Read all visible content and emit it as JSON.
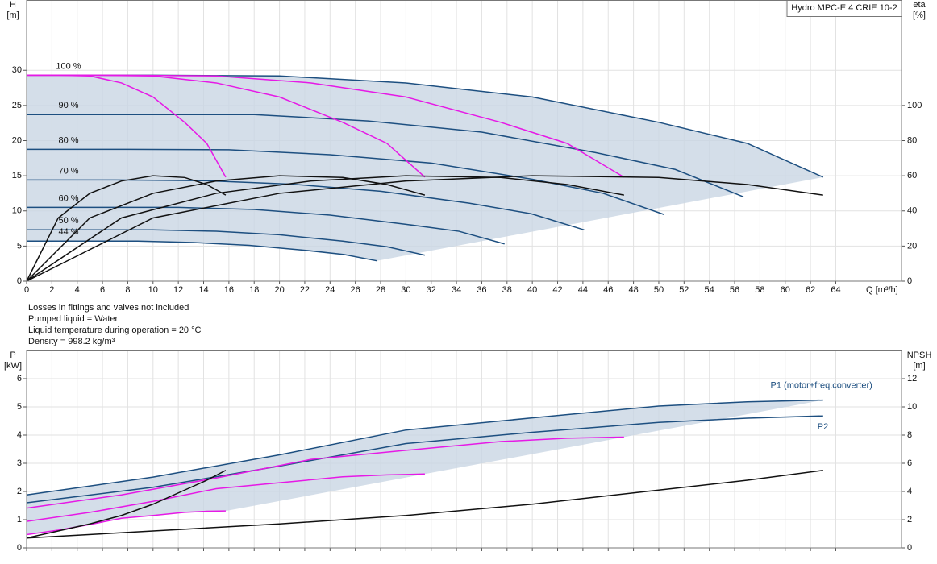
{
  "notes": [
    "Losses in fittings and valves not included",
    "Pumped liquid = Water",
    "Liquid temperature during operation = 20 °C",
    "Density = 998.2 kg/m³"
  ],
  "chart_data": [
    {
      "type": "line",
      "title": "Hydro MPC-E 4 CRIE 10-2",
      "xlabel": "Q [m³/h]",
      "ylabel": [
        "H",
        "[m]"
      ],
      "y2label": [
        "eta",
        "[%]"
      ],
      "xlim": [
        0,
        69.2
      ],
      "xticks": [
        0,
        2,
        4,
        6,
        8,
        10,
        12,
        14,
        16,
        18,
        20,
        22,
        24,
        26,
        28,
        30,
        32,
        34,
        36,
        38,
        40,
        42,
        44,
        46,
        48,
        50,
        52,
        54,
        56,
        58,
        60,
        62,
        64
      ],
      "ylim": [
        0,
        40
      ],
      "yticks": [
        0,
        5,
        10,
        15,
        20,
        25,
        30
      ],
      "y2lim": [
        0,
        160
      ],
      "y2ticks": [
        0,
        20,
        40,
        60,
        80,
        100
      ],
      "grid": true,
      "series": [
        {
          "name": "100 %",
          "color": "#1d4f80",
          "x": [
            0,
            10,
            20,
            30,
            40,
            50,
            57,
            63
          ],
          "values": [
            29.3,
            29.3,
            29.2,
            28.2,
            26.2,
            22.6,
            19.6,
            14.8
          ]
        },
        {
          "name": "90 %",
          "color": "#1d4f80",
          "x": [
            0,
            9,
            18,
            27,
            36,
            45,
            51.3,
            56.7
          ],
          "values": [
            23.7,
            23.7,
            23.7,
            22.8,
            21.2,
            18.3,
            15.9,
            12.0
          ]
        },
        {
          "name": "80 %",
          "color": "#1d4f80",
          "x": [
            0,
            8,
            16,
            24,
            32,
            40,
            45.6,
            50.4
          ],
          "values": [
            18.75,
            18.75,
            18.7,
            18.0,
            16.8,
            14.5,
            12.5,
            9.5
          ]
        },
        {
          "name": "70 %",
          "color": "#1d4f80",
          "x": [
            0,
            7,
            14,
            21,
            28,
            35,
            39.9,
            44.1
          ],
          "values": [
            14.4,
            14.4,
            14.3,
            13.8,
            12.8,
            11.1,
            9.6,
            7.3
          ]
        },
        {
          "name": "60 %",
          "color": "#1d4f80",
          "x": [
            0,
            6,
            12,
            18,
            24,
            30,
            34.2,
            37.8
          ],
          "values": [
            10.5,
            10.5,
            10.5,
            10.2,
            9.4,
            8.1,
            7.1,
            5.3
          ]
        },
        {
          "name": "50 %",
          "color": "#1d4f80",
          "x": [
            0,
            5,
            10,
            15,
            20,
            25,
            28.5,
            31.5
          ],
          "values": [
            7.3,
            7.3,
            7.3,
            7.1,
            6.6,
            5.7,
            4.9,
            3.7
          ]
        },
        {
          "name": "44 %",
          "color": "#1d4f80",
          "x": [
            0,
            4.4,
            8.8,
            13.2,
            17.6,
            22,
            25.1,
            27.7
          ],
          "values": [
            5.7,
            5.7,
            5.7,
            5.5,
            5.1,
            4.4,
            3.8,
            2.9
          ]
        },
        {
          "color": "#e619e6",
          "x": [
            0,
            2.5,
            5,
            7.5,
            10,
            12.5,
            14.25,
            15.75
          ],
          "values": [
            29.3,
            29.3,
            29.2,
            28.2,
            26.2,
            22.6,
            19.6,
            14.8
          ]
        },
        {
          "color": "#e619e6",
          "x": [
            0,
            5,
            10,
            15,
            20,
            25,
            28.5,
            31.5
          ],
          "values": [
            29.3,
            29.3,
            29.2,
            28.2,
            26.2,
            22.6,
            19.6,
            14.8
          ]
        },
        {
          "color": "#e619e6",
          "x": [
            0,
            7.5,
            15,
            22.5,
            30,
            37.5,
            42.75,
            47.25
          ],
          "values": [
            29.3,
            29.3,
            29.2,
            28.2,
            26.2,
            22.6,
            19.6,
            14.8
          ]
        },
        {
          "color": "#111111",
          "axis": "y2",
          "x": [
            0,
            2.5,
            5,
            7.5,
            10,
            12.5,
            14.25,
            15.75
          ],
          "values": [
            0,
            36,
            50,
            57,
            60,
            59,
            55,
            49
          ]
        },
        {
          "color": "#111111",
          "axis": "y2",
          "x": [
            0,
            5,
            10,
            15,
            20,
            25,
            28.5,
            31.5
          ],
          "values": [
            0,
            36,
            50,
            57,
            60,
            59,
            55,
            49
          ]
        },
        {
          "color": "#111111",
          "axis": "y2",
          "x": [
            0,
            7.5,
            15,
            22.5,
            30,
            37.5,
            42.75,
            47.25
          ],
          "values": [
            0,
            36,
            50,
            57,
            60,
            59,
            55,
            49
          ]
        },
        {
          "color": "#111111",
          "axis": "y2",
          "x": [
            0,
            10,
            20,
            30,
            40,
            50,
            57,
            63
          ],
          "values": [
            0,
            36,
            50,
            57,
            60,
            59,
            55,
            49
          ]
        }
      ]
    },
    {
      "type": "line",
      "ylabel": [
        "P",
        "[kW]"
      ],
      "y2label": [
        "NPSH",
        "[m]"
      ],
      "xlim": [
        0,
        69.2
      ],
      "ylim": [
        0,
        7
      ],
      "yticks": [
        0,
        1,
        2,
        3,
        4,
        5,
        6
      ],
      "y2lim": [
        0,
        14
      ],
      "y2ticks": [
        0,
        2,
        4,
        6,
        8,
        10,
        12
      ],
      "grid": true,
      "series": [
        {
          "name": "P1 (motor+freq.converter)",
          "color": "#1d4f80",
          "x": [
            0,
            10,
            20,
            30,
            40,
            50,
            57,
            63
          ],
          "values": [
            1.88,
            2.51,
            3.3,
            4.18,
            4.61,
            5.03,
            5.18,
            5.24
          ]
        },
        {
          "name": "P2",
          "color": "#1d4f80",
          "x": [
            0,
            10,
            20,
            30,
            40,
            50,
            57,
            63
          ],
          "values": [
            1.6,
            2.15,
            2.9,
            3.7,
            4.1,
            4.45,
            4.6,
            4.68
          ]
        },
        {
          "color": "#e619e6",
          "x": [
            0,
            7.5,
            15,
            22.5,
            30,
            37.5,
            42.75,
            47.25
          ],
          "values": [
            1.41,
            1.88,
            2.48,
            3.14,
            3.46,
            3.77,
            3.89,
            3.93
          ]
        },
        {
          "color": "#e619e6",
          "x": [
            0,
            5,
            10,
            15,
            20,
            25,
            28.5,
            31.5
          ],
          "values": [
            0.94,
            1.26,
            1.65,
            2.1,
            2.31,
            2.52,
            2.59,
            2.62
          ]
        },
        {
          "color": "#e619e6",
          "x": [
            0,
            2.5,
            5,
            7.5,
            10,
            12.5,
            14.25,
            15.75
          ],
          "values": [
            0.47,
            0.63,
            0.83,
            1.05,
            1.15,
            1.26,
            1.3,
            1.31
          ]
        },
        {
          "color": "#111111",
          "axis": "y2",
          "x": [
            0,
            10,
            20,
            30,
            40,
            50,
            57,
            63
          ],
          "values": [
            0.7,
            1.2,
            1.7,
            2.3,
            3.1,
            4.1,
            4.8,
            5.5
          ]
        },
        {
          "color": "#111111",
          "axis": "y2",
          "x": [
            0,
            2.5,
            5,
            7.5,
            10,
            12.5,
            14.25,
            15.75
          ],
          "values": [
            0.7,
            1.2,
            1.7,
            2.3,
            3.1,
            4.1,
            4.8,
            5.5
          ]
        }
      ]
    }
  ]
}
